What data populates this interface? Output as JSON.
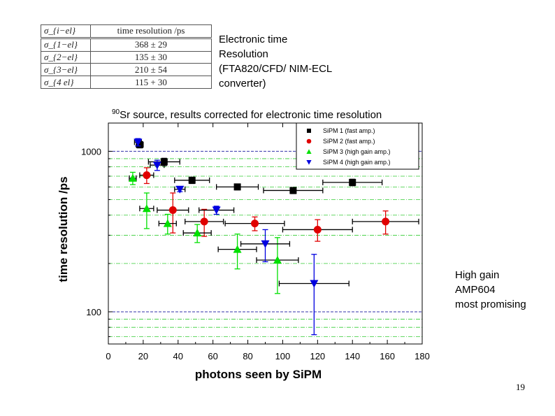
{
  "resolution_table": {
    "header": [
      "σ_{i−el}",
      "time resolution /ps"
    ],
    "rows": [
      {
        "symbol": "σ_{1−el}",
        "value": "368 ± 29"
      },
      {
        "symbol": "σ_{2−el}",
        "value": "135 ± 30"
      },
      {
        "symbol": "σ_{3−el}",
        "value": "210 ± 54"
      },
      {
        "symbol": "σ_{4 el}",
        "value": "115 + 30"
      }
    ]
  },
  "electronic_note": [
    "Electronic time",
    "Resolution",
    "(FTA820/CFD/ NIM-ECL",
    "converter)"
  ],
  "source_note": {
    "sup": "90",
    "text": "Sr source, results corrected for electronic time resolution"
  },
  "gain_note": [
    "High gain",
    "AMP604",
    "most promising"
  ],
  "page_number": "19",
  "chart_data": {
    "type": "scatter",
    "xlabel": "photons seen by SiPM",
    "ylabel": "time resolution /ps",
    "xlim": [
      0,
      180
    ],
    "ylim": [
      63,
      1500
    ],
    "y_scale": "log",
    "x_ticks": [
      0,
      20,
      40,
      60,
      80,
      100,
      120,
      140,
      160,
      180
    ],
    "y_tick_labels": [
      {
        "value": 100,
        "label": "100"
      },
      {
        "value": 1000,
        "label": "1000"
      }
    ],
    "legend_position": "top-right",
    "series": [
      {
        "name": "SiPM 1 (fast amp.)",
        "color": "#000000",
        "marker": "square",
        "points": [
          {
            "x": 18,
            "y": 1100,
            "xerr": 2,
            "yerr": 50
          },
          {
            "x": 32,
            "y": 860,
            "xerr": 9,
            "yerr": 45
          },
          {
            "x": 48,
            "y": 660,
            "xerr": 10,
            "yerr": 30
          },
          {
            "x": 74,
            "y": 600,
            "xerr": 12,
            "yerr": 25
          },
          {
            "x": 106,
            "y": 570,
            "xerr": 17,
            "yerr": 25
          },
          {
            "x": 140,
            "y": 640,
            "xerr": 17,
            "yerr": 30
          }
        ]
      },
      {
        "name": "SiPM 2 (fast amp.)",
        "color": "#e00000",
        "marker": "circle",
        "points": [
          {
            "x": 22,
            "y": 710,
            "xerr": 4,
            "yerr": 80
          },
          {
            "x": 37,
            "y": 430,
            "xerr": 9,
            "yerr": 120
          },
          {
            "x": 55,
            "y": 365,
            "xerr": 11,
            "yerr": 70
          },
          {
            "x": 84,
            "y": 355,
            "xerr": 17,
            "yerr": 35
          },
          {
            "x": 120,
            "y": 325,
            "xerr": 20,
            "yerr": 50
          },
          {
            "x": 159,
            "y": 365,
            "xerr": 19,
            "yerr": 60
          }
        ]
      },
      {
        "name": "SiPM 3 (high gain amp.)",
        "color": "#00e000",
        "marker": "triangle-up",
        "points": [
          {
            "x": 14,
            "y": 680,
            "xerr": 2,
            "yerr": 60
          },
          {
            "x": 22,
            "y": 440,
            "xerr": 4,
            "yerr": 110
          },
          {
            "x": 34,
            "y": 355,
            "xerr": 5,
            "yerr": 50
          },
          {
            "x": 51,
            "y": 310,
            "xerr": 8,
            "yerr": 40
          },
          {
            "x": 74,
            "y": 245,
            "xerr": 11,
            "yerr": 60
          },
          {
            "x": 97,
            "y": 210,
            "xerr": 12,
            "yerr": 80
          }
        ]
      },
      {
        "name": "SiPM 4 (high gain amp.)",
        "color": "#0000e0",
        "marker": "triangle-down",
        "points": [
          {
            "x": 17,
            "y": 1140,
            "xerr": 2,
            "yerr": 60
          },
          {
            "x": 28,
            "y": 820,
            "xerr": 4,
            "yerr": 60
          },
          {
            "x": 41,
            "y": 580,
            "xerr": 3,
            "yerr": 20
          },
          {
            "x": 62,
            "y": 430,
            "xerr": 10,
            "yerr": 25
          },
          {
            "x": 90,
            "y": 265,
            "xerr": 14,
            "yerr": 60
          },
          {
            "x": 118,
            "y": 150,
            "xerr": 20,
            "yerr": 78
          }
        ]
      }
    ]
  },
  "colors": {
    "grid_dark": "#3333aa",
    "grid_light": "#33cc33"
  }
}
